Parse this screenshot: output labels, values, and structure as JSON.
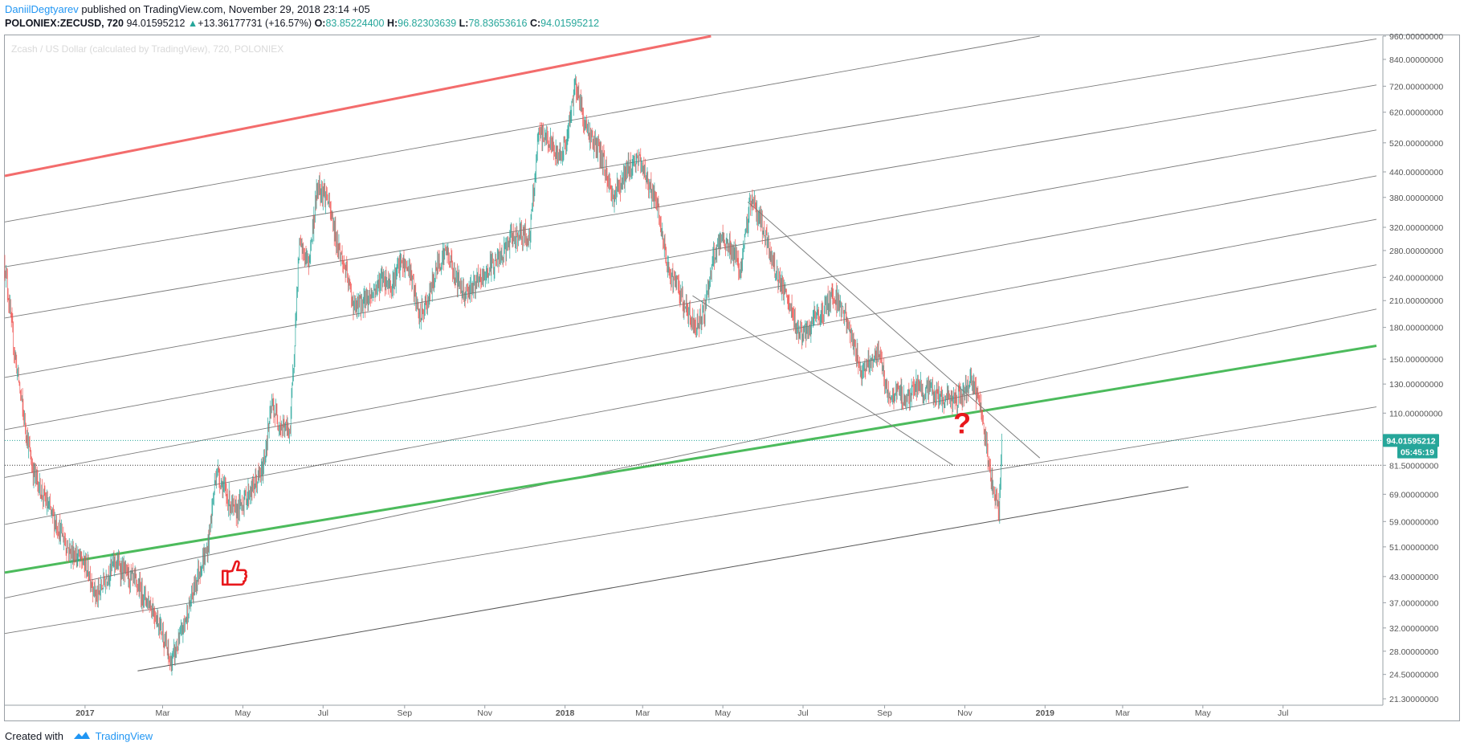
{
  "header": {
    "author": "DaniilDegtyarev",
    "published_text": "published on TradingView.com, November 29, 2018 23:14 +05",
    "symbol": "POLONIEX:ZECUSD, 720",
    "last": "94.01595212",
    "change_arrow": "up-triangle-icon",
    "change": "+13.36177731 (+16.57%)",
    "o_label": "O:",
    "o_value": "83.85224400",
    "h_label": "H:",
    "h_value": "96.82303639",
    "l_label": "L:",
    "l_value": "78.83653616",
    "c_label": "C:",
    "c_value": "94.01595212"
  },
  "footer": {
    "created_with": "Created with",
    "brand": "TradingView"
  },
  "chart_data": {
    "type": "candlestick",
    "title": "Zcash / US Dollar (calculated by TradingView), 720, POLONIEX",
    "y_scale": "log",
    "ylim": [
      21.3,
      960
    ],
    "x_range": [
      "2016-11-01",
      "2019-09-10"
    ],
    "grid": false,
    "y_tick_labels": [
      "960.00000000",
      "840.00000000",
      "720.00000000",
      "620.00000000",
      "520.00000000",
      "440.00000000",
      "380.00000000",
      "320.00000000",
      "280.00000000",
      "240.00000000",
      "210.00000000",
      "180.00000000",
      "150.00000000",
      "130.00000000",
      "110.00000000",
      "81.50000000",
      "69.00000000",
      "59.00000000",
      "51.00000000",
      "43.00000000",
      "37.00000000",
      "32.00000000",
      "28.00000000",
      "24.50000000",
      "21.30000000"
    ],
    "x_tick_labels": [
      {
        "label": "2017",
        "date": "2017-01-01",
        "bold": true
      },
      {
        "label": "Mar",
        "date": "2017-03-01"
      },
      {
        "label": "May",
        "date": "2017-05-01"
      },
      {
        "label": "Jul",
        "date": "2017-07-01"
      },
      {
        "label": "Sep",
        "date": "2017-09-01"
      },
      {
        "label": "Nov",
        "date": "2017-11-01"
      },
      {
        "label": "2018",
        "date": "2018-01-01",
        "bold": true
      },
      {
        "label": "Mar",
        "date": "2018-03-01"
      },
      {
        "label": "May",
        "date": "2018-05-01"
      },
      {
        "label": "Jul",
        "date": "2018-07-01"
      },
      {
        "label": "Sep",
        "date": "2018-09-01"
      },
      {
        "label": "Nov",
        "date": "2018-11-01"
      },
      {
        "label": "2019",
        "date": "2019-01-01",
        "bold": true
      },
      {
        "label": "Mar",
        "date": "2019-03-01"
      },
      {
        "label": "May",
        "date": "2019-05-01"
      },
      {
        "label": "Jul",
        "date": "2019-07-01"
      }
    ],
    "price_path": [
      [
        "2016-11-01",
        260
      ],
      [
        "2016-11-08",
        160
      ],
      [
        "2016-11-15",
        110
      ],
      [
        "2016-11-22",
        80
      ],
      [
        "2016-11-29",
        70
      ],
      [
        "2016-12-06",
        62
      ],
      [
        "2016-12-13",
        56
      ],
      [
        "2016-12-20",
        50
      ],
      [
        "2016-12-27",
        48
      ],
      [
        "2017-01-03",
        45
      ],
      [
        "2017-01-10",
        38
      ],
      [
        "2017-01-17",
        43
      ],
      [
        "2017-01-24",
        47
      ],
      [
        "2017-01-31",
        44
      ],
      [
        "2017-02-07",
        42
      ],
      [
        "2017-02-14",
        39
      ],
      [
        "2017-02-21",
        36
      ],
      [
        "2017-02-28",
        32
      ],
      [
        "2017-03-07",
        26
      ],
      [
        "2017-03-14",
        30
      ],
      [
        "2017-03-21",
        36
      ],
      [
        "2017-03-28",
        44
      ],
      [
        "2017-04-04",
        50
      ],
      [
        "2017-04-11",
        80
      ],
      [
        "2017-04-18",
        69
      ],
      [
        "2017-04-25",
        62
      ],
      [
        "2017-05-02",
        67
      ],
      [
        "2017-05-09",
        72
      ],
      [
        "2017-05-16",
        79
      ],
      [
        "2017-05-23",
        115
      ],
      [
        "2017-05-30",
        102
      ],
      [
        "2017-06-06",
        100
      ],
      [
        "2017-06-13",
        290
      ],
      [
        "2017-06-20",
        260
      ],
      [
        "2017-06-27",
        410
      ],
      [
        "2017-07-04",
        380
      ],
      [
        "2017-07-11",
        300
      ],
      [
        "2017-07-18",
        250
      ],
      [
        "2017-07-25",
        200
      ],
      [
        "2017-08-01",
        210
      ],
      [
        "2017-08-08",
        220
      ],
      [
        "2017-08-15",
        240
      ],
      [
        "2017-08-22",
        230
      ],
      [
        "2017-08-29",
        260
      ],
      [
        "2017-09-05",
        250
      ],
      [
        "2017-09-12",
        190
      ],
      [
        "2017-09-19",
        210
      ],
      [
        "2017-09-26",
        260
      ],
      [
        "2017-10-03",
        280
      ],
      [
        "2017-10-10",
        240
      ],
      [
        "2017-10-17",
        220
      ],
      [
        "2017-10-24",
        230
      ],
      [
        "2017-10-31",
        240
      ],
      [
        "2017-11-07",
        260
      ],
      [
        "2017-11-14",
        270
      ],
      [
        "2017-11-21",
        300
      ],
      [
        "2017-11-28",
        310
      ],
      [
        "2017-12-05",
        300
      ],
      [
        "2017-12-12",
        550
      ],
      [
        "2017-12-19",
        530
      ],
      [
        "2017-12-26",
        480
      ],
      [
        "2018-01-02",
        520
      ],
      [
        "2018-01-09",
        740
      ],
      [
        "2018-01-16",
        580
      ],
      [
        "2018-01-23",
        520
      ],
      [
        "2018-01-30",
        470
      ],
      [
        "2018-02-06",
        380
      ],
      [
        "2018-02-13",
        420
      ],
      [
        "2018-02-20",
        460
      ],
      [
        "2018-02-27",
        470
      ],
      [
        "2018-03-06",
        410
      ],
      [
        "2018-03-13",
        350
      ],
      [
        "2018-03-20",
        250
      ],
      [
        "2018-03-27",
        230
      ],
      [
        "2018-04-03",
        200
      ],
      [
        "2018-04-10",
        180
      ],
      [
        "2018-04-17",
        200
      ],
      [
        "2018-04-24",
        270
      ],
      [
        "2018-05-01",
        300
      ],
      [
        "2018-05-08",
        280
      ],
      [
        "2018-05-15",
        250
      ],
      [
        "2018-05-22",
        380
      ],
      [
        "2018-05-29",
        340
      ],
      [
        "2018-06-05",
        280
      ],
      [
        "2018-06-12",
        240
      ],
      [
        "2018-06-19",
        210
      ],
      [
        "2018-06-26",
        180
      ],
      [
        "2018-07-03",
        170
      ],
      [
        "2018-07-10",
        190
      ],
      [
        "2018-07-17",
        200
      ],
      [
        "2018-07-24",
        220
      ],
      [
        "2018-07-31",
        200
      ],
      [
        "2018-08-07",
        170
      ],
      [
        "2018-08-14",
        140
      ],
      [
        "2018-08-21",
        150
      ],
      [
        "2018-08-28",
        155
      ],
      [
        "2018-09-04",
        120
      ],
      [
        "2018-09-11",
        125
      ],
      [
        "2018-09-18",
        118
      ],
      [
        "2018-09-25",
        130
      ],
      [
        "2018-10-02",
        125
      ],
      [
        "2018-10-09",
        122
      ],
      [
        "2018-10-16",
        120
      ],
      [
        "2018-10-23",
        118
      ],
      [
        "2018-10-30",
        122
      ],
      [
        "2018-11-06",
        132
      ],
      [
        "2018-11-13",
        115
      ],
      [
        "2018-11-20",
        78
      ],
      [
        "2018-11-27",
        62
      ],
      [
        "2018-11-29",
        94
      ]
    ],
    "trendlines": [
      {
        "name": "red-upper-line",
        "color": "#f36c6c",
        "width": 3,
        "points": [
          [
            "2016-11-01",
            430
          ],
          [
            "2018-04-22",
            960
          ]
        ]
      },
      {
        "name": "green-line",
        "color": "#4cbb5c",
        "width": 3,
        "points": [
          [
            "2016-11-01",
            44
          ],
          [
            "2019-09-10",
            162
          ]
        ]
      },
      {
        "name": "descending-upper",
        "color": "#808080",
        "width": 1,
        "points": [
          [
            "2018-05-20",
            370
          ],
          [
            "2018-12-28",
            85
          ]
        ]
      },
      {
        "name": "descending-lower",
        "color": "#808080",
        "width": 1,
        "points": [
          [
            "2018-04-08",
            216
          ],
          [
            "2018-10-23",
            81.5
          ]
        ]
      },
      {
        "name": "bottom-support",
        "color": "#555555",
        "width": 1,
        "points": [
          [
            "2017-02-10",
            25
          ],
          [
            "2019-04-20",
            72
          ]
        ]
      }
    ],
    "parallel_channel_lines": [
      [
        [
          "2016-11-01",
          31
        ],
        [
          "2019-09-10",
          114
        ]
      ],
      [
        [
          "2016-11-01",
          38
        ],
        [
          "2019-09-10",
          200
        ]
      ],
      [
        [
          "2016-11-01",
          58
        ],
        [
          "2019-09-10",
          258
        ]
      ],
      [
        [
          "2016-11-01",
          76
        ],
        [
          "2019-09-10",
          335
        ]
      ],
      [
        [
          "2016-11-01",
          100
        ],
        [
          "2019-09-10",
          430
        ]
      ],
      [
        [
          "2016-11-01",
          135
        ],
        [
          "2019-09-10",
          560
        ]
      ],
      [
        [
          "2016-11-01",
          190
        ],
        [
          "2019-09-10",
          725
        ]
      ],
      [
        [
          "2016-11-01",
          255
        ],
        [
          "2019-09-10",
          945
        ]
      ],
      [
        [
          "2016-11-01",
          330
        ],
        [
          "2018-12-28",
          960
        ]
      ]
    ],
    "horizontal_lines": [
      {
        "name": "last-price-line",
        "value": 94.01595212,
        "color": "#26a69a",
        "style": "dotted"
      },
      {
        "name": "previous-close-line",
        "value": 81.5,
        "color": "#333333",
        "style": "dotted"
      }
    ],
    "price_labels": [
      {
        "text": "94.01595212",
        "value": 94.01595212,
        "color": "#26a69a"
      },
      {
        "text": "05:45:19",
        "value": 88,
        "color": "#26a69a"
      }
    ],
    "annotations": [
      {
        "name": "thumbs-up-icon",
        "color": "#e8181c",
        "date": "2017-04-23",
        "value": 44
      },
      {
        "name": "question-mark",
        "text": "?",
        "color": "#e8181c",
        "date": "2018-10-30",
        "value": 98
      }
    ],
    "up_color": "#26a69a",
    "down_color": "#ef5350"
  }
}
